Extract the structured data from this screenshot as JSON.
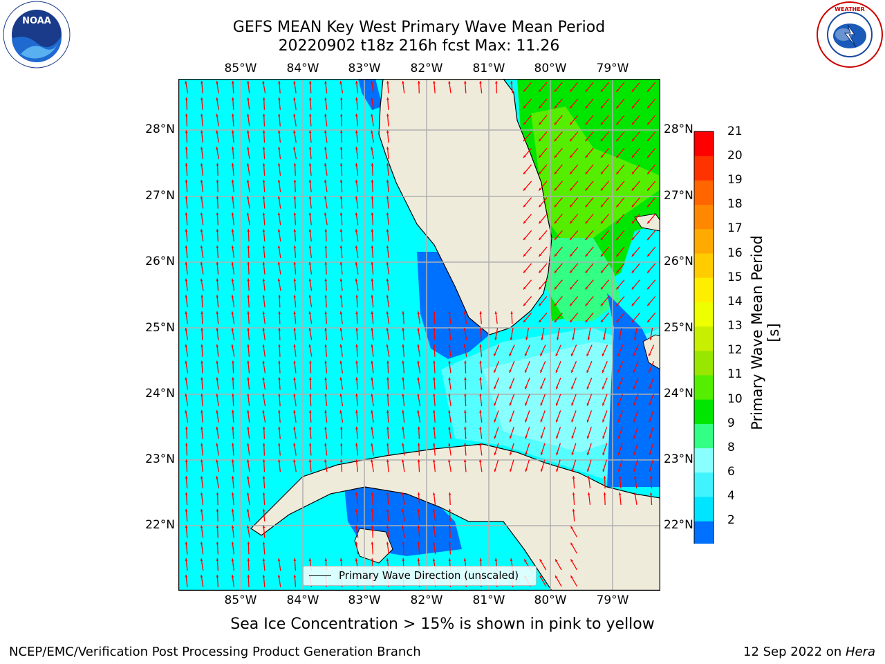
{
  "title_line1": "GEFS MEAN Key West Primary Wave Mean Period",
  "title_line2": "20220902 t18z 216h fcst   Max: 11.26",
  "caption": "Sea Ice Concentration > 15% is shown in pink to yellow",
  "footer_left": "NCEP/EMC/Verification Post Processing Product Generation Branch",
  "footer_right_date": "12 Sep 2022 on ",
  "footer_right_host": "Hera",
  "legend_label": "Primary Wave Direction (unscaled)",
  "colorbar_label": "Primary Wave Mean Period [s]",
  "lon_labels": [
    "85°W",
    "84°W",
    "83°W",
    "82°W",
    "81°W",
    "80°W",
    "79°W"
  ],
  "lat_labels": [
    "28°N",
    "27°N",
    "26°N",
    "25°N",
    "24°N",
    "23°N",
    "22°N"
  ],
  "colorbar_ticks": [
    "21",
    "20",
    "19",
    "18",
    "17",
    "16",
    "15",
    "14",
    "13",
    "12",
    "11",
    "10",
    "9",
    "8",
    "6",
    "4",
    "2"
  ],
  "colorbar_colors": [
    "#0070ff",
    "#00e5ff",
    "#40f3ff",
    "#8affff",
    "#33ff85",
    "#00e600",
    "#55ee00",
    "#99e600",
    "#c8ee00",
    "#eeff00",
    "#ffee00",
    "#ffcc00",
    "#ffaa00",
    "#ff8800",
    "#ff6600",
    "#ff3300",
    "#ff0000"
  ],
  "colors": {
    "land": "#efebdb",
    "arrow": "#ff0000",
    "grid": "#b0b0b0"
  },
  "logos": {
    "left": "NOAA",
    "right": "NATIONAL WEATHER SERVICE"
  }
}
